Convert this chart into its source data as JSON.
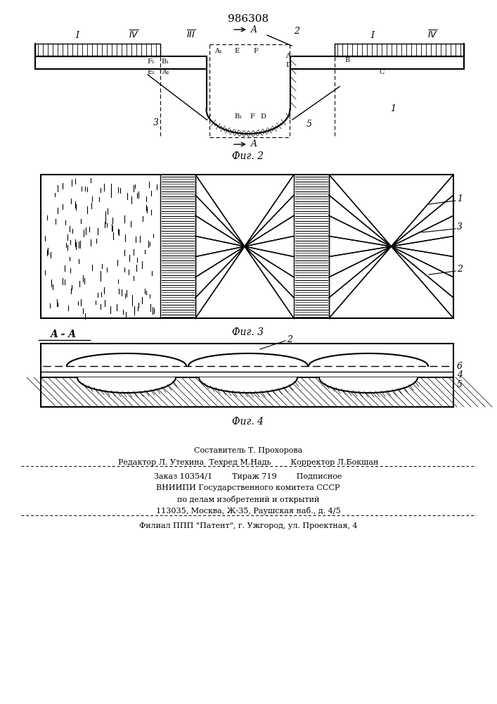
{
  "patent_number": "986308",
  "bg_color": "#ffffff",
  "black": "#000000",
  "footer": {
    "line1_center": "Составитель Т. Прохорова",
    "line2": "Редактор Л. Утехина  Техред М.Надь        Корректор Л.Бокшан",
    "line3": "Заказ 10354/1        Тираж 719        Подписное",
    "line4": "ВНИИПИ Государственного комитета СССР",
    "line5": "по делам изобретений и открытий",
    "line6": "113035, Москва, Ж-35, Раушская наб., д. 4/5",
    "line7": "Филиал ППП \"Патент\", г. Ужгород, ул. Проектная, 4"
  }
}
